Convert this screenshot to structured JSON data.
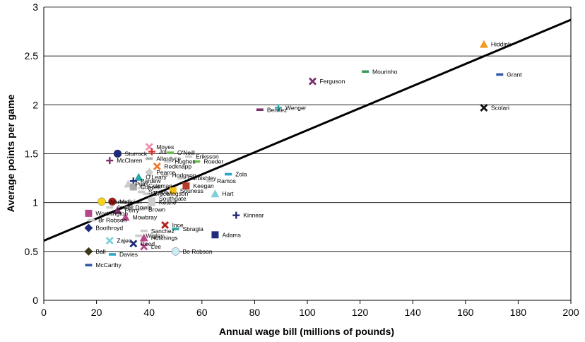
{
  "chart_data": {
    "type": "scatter",
    "xlabel": "Annual wage bill (millions of pounds)",
    "ylabel": "Average points per game",
    "xlim": [
      0,
      200
    ],
    "ylim": [
      0,
      3
    ],
    "xticks": [
      "0",
      "20",
      "40",
      "60",
      "80",
      "100",
      "120",
      "140",
      "160",
      "180",
      "200"
    ],
    "yticks": [
      "0",
      "0.5",
      "1",
      "1.5",
      "2",
      "2.5",
      "3"
    ],
    "grid": "horizontal",
    "legend": "none",
    "trendline": {
      "x": [
        0,
        200
      ],
      "y": [
        0.61,
        2.87
      ]
    },
    "points": [
      {
        "name": "Hiddink",
        "x": 167,
        "y": 2.62,
        "marker": "triangle",
        "color": "#f29b1e"
      },
      {
        "name": "Mourinho",
        "x": 122,
        "y": 2.34,
        "marker": "dash",
        "color": "#3c9a5a"
      },
      {
        "name": "Grant",
        "x": 173,
        "y": 2.31,
        "marker": "dash",
        "color": "#3559a8"
      },
      {
        "name": "Ferguson",
        "x": 102,
        "y": 2.24,
        "marker": "x",
        "color": "#7b2f6b"
      },
      {
        "name": "Wenger",
        "x": 89,
        "y": 1.97,
        "marker": "plus",
        "color": "#2aa6a6"
      },
      {
        "name": "Scolari",
        "x": 167,
        "y": 1.97,
        "marker": "x",
        "color": "#111111"
      },
      {
        "name": "Benitez",
        "x": 82,
        "y": 1.95,
        "marker": "dash",
        "color": "#7b2f6b"
      },
      {
        "name": "Moyes",
        "x": 40,
        "y": 1.57,
        "marker": "x",
        "color": "#f08cb0"
      },
      {
        "name": "Jol",
        "x": 41,
        "y": 1.52,
        "marker": "plus",
        "color": "#e0312a"
      },
      {
        "name": "O'Neill",
        "x": 48,
        "y": 1.51,
        "marker": "dash",
        "color": "#6cc04a"
      },
      {
        "name": "Sturrock",
        "x": 28,
        "y": 1.5,
        "marker": "circle",
        "color": "#1f2a7a"
      },
      {
        "name": "Allardyce",
        "x": 40,
        "y": 1.45,
        "marker": "dash",
        "color": "#aaaaaa"
      },
      {
        "name": "Eriksson",
        "x": 55,
        "y": 1.47,
        "marker": "dash",
        "color": "#cccccc"
      },
      {
        "name": "McClaren",
        "x": 25,
        "y": 1.43,
        "marker": "plus",
        "color": "#7b2f6b"
      },
      {
        "name": "Hughes",
        "x": 47,
        "y": 1.42,
        "marker": "dash",
        "color": "#cccccc"
      },
      {
        "name": "Roeder",
        "x": 58,
        "y": 1.42,
        "marker": "dash",
        "color": "#6cc04a"
      },
      {
        "name": "Redknapp",
        "x": 43,
        "y": 1.37,
        "marker": "x",
        "color": "#f07a2a"
      },
      {
        "name": "Pearce",
        "x": 40,
        "y": 1.31,
        "marker": "diamond",
        "color": "#cccccc"
      },
      {
        "name": "Hodgson",
        "x": 46,
        "y": 1.28,
        "marker": "dash",
        "color": "#cccccc"
      },
      {
        "name": "Curbishley",
        "x": 52,
        "y": 1.25,
        "marker": "dash",
        "color": "#cccccc"
      },
      {
        "name": "Zola",
        "x": 70,
        "y": 1.29,
        "marker": "dash",
        "color": "#2aa6c8"
      },
      {
        "name": "O'Leary",
        "x": 36,
        "y": 1.26,
        "marker": "triangle",
        "color": "#2aa6a6"
      },
      {
        "name": "Pardew",
        "x": 34,
        "y": 1.22,
        "marker": "plus",
        "color": "#1f2a7a"
      },
      {
        "name": "Pulis",
        "x": 32,
        "y": 1.19,
        "marker": "triangle",
        "color": "#cccccc"
      },
      {
        "name": "Ramos",
        "x": 63,
        "y": 1.22,
        "marker": "dash",
        "color": "#cccccc"
      },
      {
        "name": "Coppell",
        "x": 34,
        "y": 1.16,
        "marker": "square",
        "color": "#aaaaaa"
      },
      {
        "name": "Coleman",
        "x": 37,
        "y": 1.17,
        "marker": "x",
        "color": "#cccccc"
      },
      {
        "name": "Keegan",
        "x": 54,
        "y": 1.17,
        "marker": "square",
        "color": "#b83a2a"
      },
      {
        "name": "Santini",
        "x": 37,
        "y": 1.11,
        "marker": "dash",
        "color": "#cccccc"
      },
      {
        "name": "Souness",
        "x": 49,
        "y": 1.12,
        "marker": "square",
        "color": "#f5c21b"
      },
      {
        "name": "Bruce",
        "x": 39,
        "y": 1.09,
        "marker": "dash",
        "color": "#cccccc"
      },
      {
        "name": "Megson",
        "x": 44,
        "y": 1.09,
        "marker": "dash",
        "color": "#cccccc"
      },
      {
        "name": "Hart",
        "x": 65,
        "y": 1.09,
        "marker": "triangle",
        "color": "#7fd0d8"
      },
      {
        "name": "Southgate",
        "x": 41,
        "y": 1.04,
        "marker": "dash",
        "color": "#cccccc"
      },
      {
        "name": "Warnock",
        "x": 22,
        "y": 1.01,
        "marker": "circle",
        "color": "#f5d31b"
      },
      {
        "name": "McLeish",
        "x": 26,
        "y": 1.01,
        "marker": "circle",
        "color": "#b0221f"
      },
      {
        "name": "Keane",
        "x": 41,
        "y": 1.0,
        "marker": "square",
        "color": "#cccccc"
      },
      {
        "name": "Jewell",
        "x": 25,
        "y": 0.95,
        "marker": "dash",
        "color": "#cccccc"
      },
      {
        "name": "Dowie",
        "x": 32,
        "y": 0.95,
        "marker": "dash",
        "color": "#cccccc"
      },
      {
        "name": "Brown",
        "x": 37,
        "y": 0.93,
        "marker": "dash",
        "color": "#cccccc"
      },
      {
        "name": "Perry",
        "x": 28,
        "y": 0.92,
        "marker": "triangle",
        "color": "#7b2f6b"
      },
      {
        "name": "Worthington",
        "x": 17,
        "y": 0.89,
        "marker": "square",
        "color": "#b8478a"
      },
      {
        "name": "Kinnear",
        "x": 73,
        "y": 0.87,
        "marker": "plus",
        "color": "#1f2a7a"
      },
      {
        "name": "Mowbray",
        "x": 31,
        "y": 0.85,
        "marker": "triangle",
        "color": "#b8478a"
      },
      {
        "name": "Br Robson",
        "x": 18,
        "y": 0.82,
        "marker": "dash",
        "color": "#cccccc"
      },
      {
        "name": "Ince",
        "x": 46,
        "y": 0.77,
        "marker": "x",
        "color": "#b0221f"
      },
      {
        "name": "Boothroyd",
        "x": 17,
        "y": 0.74,
        "marker": "diamond",
        "color": "#1f2a7a"
      },
      {
        "name": "Sanchez",
        "x": 38,
        "y": 0.71,
        "marker": "dash",
        "color": "#cccccc"
      },
      {
        "name": "Sbragia",
        "x": 50,
        "y": 0.73,
        "marker": "dash",
        "color": "#2aa6a6"
      },
      {
        "name": "Adams",
        "x": 65,
        "y": 0.67,
        "marker": "square",
        "color": "#1f2a7a"
      },
      {
        "name": "Wigley",
        "x": 36,
        "y": 0.66,
        "marker": "dash",
        "color": "#cccccc"
      },
      {
        "name": "Hutchings",
        "x": 38,
        "y": 0.64,
        "marker": "triangle",
        "color": "#b8478a"
      },
      {
        "name": "Zajec",
        "x": 25,
        "y": 0.61,
        "marker": "x",
        "color": "#7fd0d8"
      },
      {
        "name": "Reed",
        "x": 34,
        "y": 0.58,
        "marker": "x",
        "color": "#1f2a7a"
      },
      {
        "name": "Lee",
        "x": 38,
        "y": 0.55,
        "marker": "x",
        "color": "#b8478a"
      },
      {
        "name": "Ball",
        "x": 17,
        "y": 0.5,
        "marker": "diamond",
        "color": "#3a3a1a"
      },
      {
        "name": "Bo Robson",
        "x": 50,
        "y": 0.5,
        "marker": "circle",
        "color": "#cde9f5"
      },
      {
        "name": "Davies",
        "x": 26,
        "y": 0.47,
        "marker": "dash",
        "color": "#2aa6c8"
      },
      {
        "name": "McCarthy",
        "x": 17,
        "y": 0.36,
        "marker": "dash",
        "color": "#3559a8"
      }
    ]
  }
}
